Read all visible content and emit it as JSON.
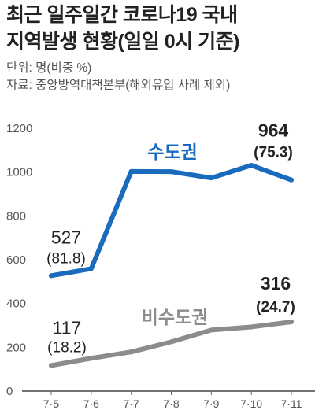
{
  "chart_data": {
    "type": "line",
    "title": [
      "최근 일주일간 코로나19 국내",
      "지역발생 현황(일일 0시 기준)"
    ],
    "unit_note": "단위: 명(비중 %)",
    "source_note": "자료: 중앙방역대책본부(해외유입 사례 제외)",
    "categories": [
      "7·5",
      "7·6",
      "7·7",
      "7·8",
      "7·9",
      "7·10",
      "7·11"
    ],
    "yticks": [
      0,
      200,
      400,
      600,
      800,
      1000,
      1200
    ],
    "ylim": [
      0,
      1200
    ],
    "grid": false,
    "legend": "inline",
    "series": [
      {
        "name": "수도권",
        "color": "#1a6bbd",
        "values": [
          527,
          559,
          1003,
          1002,
          973,
          1031,
          964
        ],
        "point_labels": [
          {
            "index": 0,
            "value": "527",
            "share": "(81.8)"
          },
          {
            "index": 6,
            "value": "964",
            "share": "(75.3)"
          }
        ]
      },
      {
        "name": "비수도권",
        "color": "#8c8c8c",
        "values": [
          117,
          150,
          179,
          225,
          279,
          293,
          316
        ],
        "point_labels": [
          {
            "index": 0,
            "value": "117",
            "share": "(18.2)"
          },
          {
            "index": 6,
            "value": "316",
            "share": "(24.7)"
          }
        ]
      }
    ]
  }
}
